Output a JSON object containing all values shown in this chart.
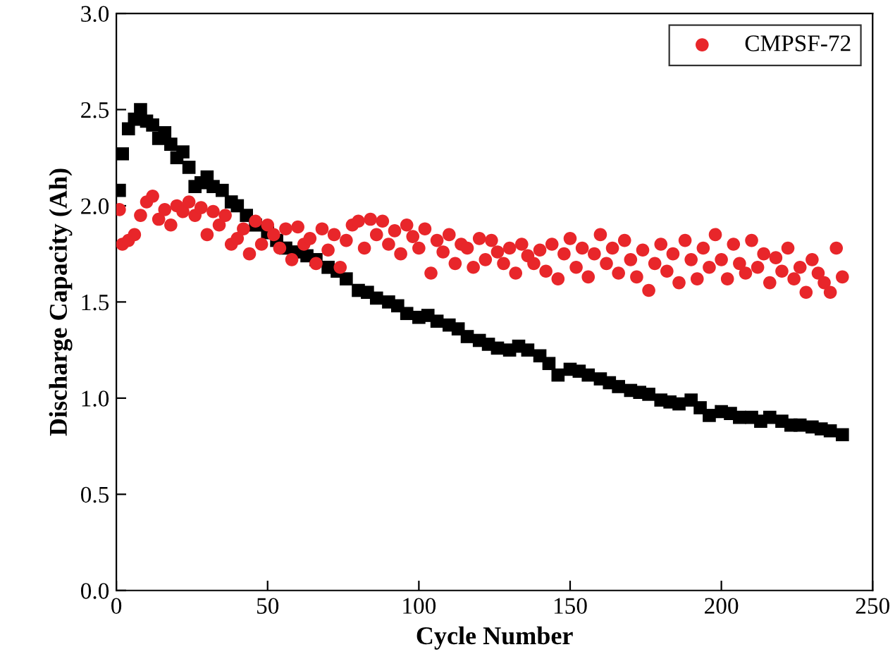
{
  "chart_data": {
    "type": "scatter",
    "xlabel": "Cycle Number",
    "ylabel": "Discharge Capacity (Ah)",
    "xlim": [
      0,
      250
    ],
    "xticks": [
      0,
      50,
      100,
      150,
      200,
      250
    ],
    "ylim": [
      0,
      3.0
    ],
    "yticks": [
      {
        "value": 0,
        "label": "0.0"
      },
      {
        "value": 0.5,
        "label": "0.5"
      },
      {
        "value": 1,
        "label": "1.0"
      },
      {
        "value": 1.5,
        "label": "1.5"
      },
      {
        "value": 2,
        "label": "2.0"
      },
      {
        "value": 2.5,
        "label": "2.5"
      },
      {
        "value": 3,
        "label": "3.0"
      }
    ],
    "grid": false,
    "legend": "top right",
    "series": [
      {
        "color": "#000000",
        "marker": "square",
        "x": [
          1,
          2,
          4,
          6,
          8,
          10,
          12,
          14,
          16,
          18,
          20,
          22,
          24,
          26,
          28,
          30,
          32,
          35,
          38,
          40,
          43,
          46,
          50,
          53,
          56,
          60,
          63,
          66,
          70,
          73,
          76,
          80,
          83,
          86,
          90,
          93,
          96,
          100,
          103,
          106,
          110,
          113,
          116,
          120,
          123,
          126,
          130,
          133,
          136,
          140,
          143,
          146,
          150,
          153,
          156,
          160,
          163,
          166,
          170,
          173,
          176,
          180,
          183,
          186,
          190,
          193,
          196,
          200,
          203,
          206,
          210,
          213,
          216,
          220,
          223,
          226,
          230,
          233,
          236,
          240
        ],
        "values": [
          2.08,
          2.27,
          2.4,
          2.45,
          2.5,
          2.44,
          2.42,
          2.35,
          2.38,
          2.32,
          2.25,
          2.28,
          2.2,
          2.1,
          2.12,
          2.15,
          2.1,
          2.08,
          2.02,
          2.0,
          1.95,
          1.9,
          1.86,
          1.82,
          1.78,
          1.76,
          1.74,
          1.72,
          1.68,
          1.66,
          1.62,
          1.56,
          1.55,
          1.52,
          1.5,
          1.48,
          1.44,
          1.42,
          1.43,
          1.4,
          1.38,
          1.36,
          1.32,
          1.3,
          1.28,
          1.26,
          1.25,
          1.27,
          1.25,
          1.22,
          1.18,
          1.12,
          1.15,
          1.14,
          1.12,
          1.1,
          1.08,
          1.06,
          1.04,
          1.03,
          1.02,
          0.99,
          0.98,
          0.97,
          0.99,
          0.95,
          0.91,
          0.93,
          0.92,
          0.9,
          0.9,
          0.88,
          0.9,
          0.88,
          0.86,
          0.86,
          0.85,
          0.84,
          0.83,
          0.81
        ]
      },
      {
        "name": "CMPSF-72",
        "color": "#e8262a",
        "marker": "circle",
        "x": [
          1,
          2,
          4,
          6,
          8,
          10,
          12,
          14,
          16,
          18,
          20,
          22,
          24,
          26,
          28,
          30,
          32,
          34,
          36,
          38,
          40,
          42,
          44,
          46,
          48,
          50,
          52,
          54,
          56,
          58,
          60,
          62,
          64,
          66,
          68,
          70,
          72,
          74,
          76,
          78,
          80,
          82,
          84,
          86,
          88,
          90,
          92,
          94,
          96,
          98,
          100,
          102,
          104,
          106,
          108,
          110,
          112,
          114,
          116,
          118,
          120,
          122,
          124,
          126,
          128,
          130,
          132,
          134,
          136,
          138,
          140,
          142,
          144,
          146,
          148,
          150,
          152,
          154,
          156,
          158,
          160,
          162,
          164,
          166,
          168,
          170,
          172,
          174,
          176,
          178,
          180,
          182,
          184,
          186,
          188,
          190,
          192,
          194,
          196,
          198,
          200,
          202,
          204,
          206,
          208,
          210,
          212,
          214,
          216,
          218,
          220,
          222,
          224,
          226,
          228,
          230,
          232,
          234,
          236,
          238,
          240
        ],
        "values": [
          1.98,
          1.8,
          1.82,
          1.85,
          1.95,
          2.02,
          2.05,
          1.93,
          1.98,
          1.9,
          2.0,
          1.97,
          2.02,
          1.95,
          1.99,
          1.85,
          1.97,
          1.9,
          1.95,
          1.8,
          1.83,
          1.88,
          1.75,
          1.92,
          1.8,
          1.9,
          1.85,
          1.78,
          1.88,
          1.72,
          1.89,
          1.8,
          1.83,
          1.7,
          1.88,
          1.77,
          1.85,
          1.68,
          1.82,
          1.9,
          1.92,
          1.78,
          1.93,
          1.85,
          1.92,
          1.8,
          1.87,
          1.75,
          1.9,
          1.84,
          1.78,
          1.88,
          1.65,
          1.82,
          1.76,
          1.85,
          1.7,
          1.8,
          1.78,
          1.68,
          1.83,
          1.72,
          1.82,
          1.76,
          1.7,
          1.78,
          1.65,
          1.8,
          1.74,
          1.7,
          1.77,
          1.66,
          1.8,
          1.62,
          1.75,
          1.83,
          1.68,
          1.78,
          1.63,
          1.75,
          1.85,
          1.7,
          1.78,
          1.65,
          1.82,
          1.72,
          1.63,
          1.77,
          1.56,
          1.7,
          1.8,
          1.66,
          1.75,
          1.6,
          1.82,
          1.72,
          1.62,
          1.78,
          1.68,
          1.85,
          1.72,
          1.62,
          1.8,
          1.7,
          1.65,
          1.82,
          1.68,
          1.75,
          1.6,
          1.73,
          1.66,
          1.78,
          1.62,
          1.68,
          1.55,
          1.72,
          1.65,
          1.6,
          1.55,
          1.78,
          1.63
        ]
      }
    ]
  }
}
